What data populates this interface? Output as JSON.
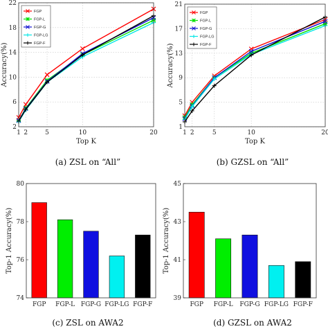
{
  "chart_data": [
    {
      "type": "line",
      "caption": "(a)  ZSL on “All”",
      "xlabel": "Top K",
      "ylabel": "Accuracy(%)",
      "x": [
        1,
        2,
        5,
        10,
        20
      ],
      "xticks": [
        "1",
        "2",
        "5",
        "10",
        "20"
      ],
      "xlim": [
        1,
        20
      ],
      "ylim": [
        2,
        22
      ],
      "yticks": [
        "2",
        "6",
        "10",
        "14",
        "18",
        "22"
      ],
      "legend_position": "top-left",
      "series": [
        {
          "name": "FGP",
          "color": "#ff0000",
          "values": [
            3.5,
            5.6,
            10.4,
            14.6,
            21.0
          ]
        },
        {
          "name": "FGP-L",
          "color": "#00e000",
          "values": [
            3.0,
            5.0,
            9.5,
            13.6,
            19.2
          ]
        },
        {
          "name": "FGP-G",
          "color": "#1010d0",
          "values": [
            3.0,
            4.9,
            9.3,
            13.8,
            19.6
          ]
        },
        {
          "name": "FGP-LG",
          "color": "#00e6e6",
          "values": [
            2.8,
            4.7,
            9.2,
            13.3,
            18.8
          ]
        },
        {
          "name": "FGP-F",
          "color": "#000000",
          "values": [
            2.9,
            4.8,
            9.2,
            13.6,
            19.9
          ]
        }
      ]
    },
    {
      "type": "line",
      "caption": "(b)  GZSL on “All”",
      "xlabel": "Top K",
      "ylabel": "Accuracy(%)",
      "x": [
        1,
        2,
        5,
        10,
        20
      ],
      "xticks": [
        "1",
        "2",
        "5",
        "10",
        "20"
      ],
      "xlim": [
        1,
        20
      ],
      "ylim": [
        1,
        21
      ],
      "yticks": [
        "1",
        "5",
        "9",
        "13",
        "17",
        "21"
      ],
      "legend_position": "top-left",
      "series": [
        {
          "name": "FGP",
          "color": "#ff0000",
          "values": [
            2.8,
            5.0,
            9.3,
            13.7,
            18.5
          ]
        },
        {
          "name": "FGP-L",
          "color": "#00e000",
          "values": [
            2.5,
            4.6,
            9.0,
            13.0,
            17.8
          ]
        },
        {
          "name": "FGP-G",
          "color": "#1010d0",
          "values": [
            2.3,
            4.4,
            9.0,
            13.3,
            18.2
          ]
        },
        {
          "name": "FGP-LG",
          "color": "#00e6e6",
          "values": [
            2.2,
            4.3,
            8.8,
            12.8,
            17.5
          ]
        },
        {
          "name": "FGP-F",
          "color": "#000000",
          "values": [
            1.8,
            3.6,
            7.7,
            12.7,
            18.9
          ]
        }
      ]
    },
    {
      "type": "bar",
      "caption": "(c)  ZSL on AWA2",
      "xlabel": "",
      "ylabel": "Top-1 Accuracy(%)",
      "categories": [
        "FGP",
        "FGP-L",
        "FGP-G",
        "FGP-LG",
        "FGP-F"
      ],
      "values": [
        79.0,
        78.1,
        77.5,
        76.2,
        77.3
      ],
      "colors": [
        "#ff0000",
        "#00ee00",
        "#1010e0",
        "#00f0f0",
        "#000000"
      ],
      "ylim": [
        74,
        80
      ],
      "yticks": [
        "74",
        "76",
        "78",
        "80"
      ]
    },
    {
      "type": "bar",
      "caption": "(d)  GZSL on AWA2",
      "xlabel": "",
      "ylabel": "Top-1 Accuracy(%)",
      "categories": [
        "FGP",
        "FGP-L",
        "FGP-G",
        "FGP-LG",
        "FGP-F"
      ],
      "values": [
        43.5,
        42.1,
        42.3,
        40.7,
        40.9
      ],
      "colors": [
        "#ff0000",
        "#00ee00",
        "#1010e0",
        "#00f0f0",
        "#000000"
      ],
      "ylim": [
        39,
        45
      ],
      "yticks": [
        "39",
        "41",
        "43",
        "45"
      ]
    }
  ]
}
